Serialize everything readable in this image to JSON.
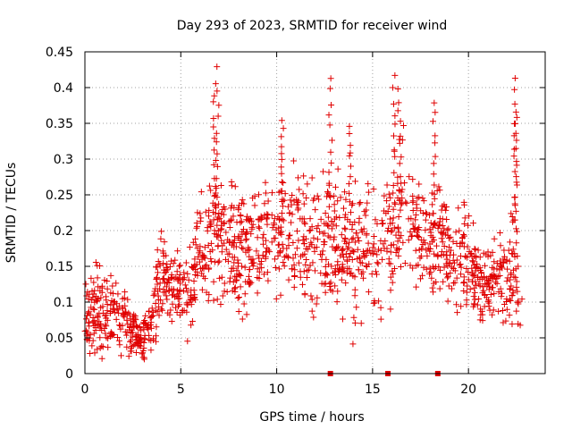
{
  "chart_data": {
    "type": "scatter",
    "title": "Day 293 of 2023, SRMTID for receiver wind",
    "xlabel": "GPS time / hours",
    "ylabel": "SRMTID / TECUs",
    "xlim": [
      0,
      24
    ],
    "ylim": [
      0,
      0.45
    ],
    "xticks": [
      0,
      5,
      10,
      15,
      20
    ],
    "xtick_labels": [
      "0",
      "5",
      "10",
      "15",
      "20"
    ],
    "yticks": [
      0,
      0.05,
      0.1,
      0.15,
      0.2,
      0.25,
      0.3,
      0.35,
      0.4,
      0.45
    ],
    "ytick_labels": [
      "0",
      "0.05",
      "0.1",
      "0.15",
      "0.2",
      "0.25",
      "0.3",
      "0.35",
      "0.4",
      "0.45"
    ],
    "grid": true,
    "marker": "+",
    "color": "#e00000",
    "series_envelope": {
      "name": "SRMTID",
      "hours": [
        0,
        0.5,
        1,
        1.5,
        2,
        2.5,
        3,
        3.5,
        4,
        4.5,
        5,
        5.5,
        6,
        6.5,
        7,
        7.5,
        8,
        9,
        10,
        11,
        12,
        13,
        14,
        15,
        15.5,
        16,
        16.5,
        17,
        17.5,
        18,
        18.5,
        19,
        19.5,
        20,
        20.5,
        21,
        21.5,
        22,
        22.5,
        22.8
      ],
      "median": [
        0.08,
        0.09,
        0.09,
        0.085,
        0.075,
        0.065,
        0.045,
        0.07,
        0.14,
        0.12,
        0.11,
        0.12,
        0.17,
        0.2,
        0.2,
        0.18,
        0.17,
        0.18,
        0.19,
        0.19,
        0.17,
        0.19,
        0.16,
        0.17,
        0.19,
        0.2,
        0.25,
        0.22,
        0.2,
        0.18,
        0.2,
        0.17,
        0.17,
        0.17,
        0.12,
        0.11,
        0.14,
        0.12,
        0.14,
        0.12
      ],
      "spread": [
        0.04,
        0.05,
        0.05,
        0.04,
        0.035,
        0.03,
        0.02,
        0.035,
        0.05,
        0.04,
        0.04,
        0.05,
        0.06,
        0.07,
        0.07,
        0.06,
        0.06,
        0.06,
        0.06,
        0.07,
        0.07,
        0.07,
        0.07,
        0.07,
        0.07,
        0.08,
        0.07,
        0.06,
        0.06,
        0.06,
        0.06,
        0.05,
        0.05,
        0.05,
        0.04,
        0.04,
        0.05,
        0.06,
        0.06,
        0.05
      ]
    },
    "peaks": [
      {
        "x": 6.9,
        "y": 0.425
      },
      {
        "x": 6.75,
        "y": 0.39
      },
      {
        "x": 10.3,
        "y": 0.355
      },
      {
        "x": 12.8,
        "y": 0.41
      },
      {
        "x": 13.85,
        "y": 0.345
      },
      {
        "x": 16.1,
        "y": 0.415
      },
      {
        "x": 16.4,
        "y": 0.395
      },
      {
        "x": 18.2,
        "y": 0.375
      },
      {
        "x": 22.45,
        "y": 0.41
      },
      {
        "x": 22.45,
        "y": 0.365
      }
    ],
    "data_gaps_hours": [
      12.8,
      15.8,
      18.4
    ]
  }
}
